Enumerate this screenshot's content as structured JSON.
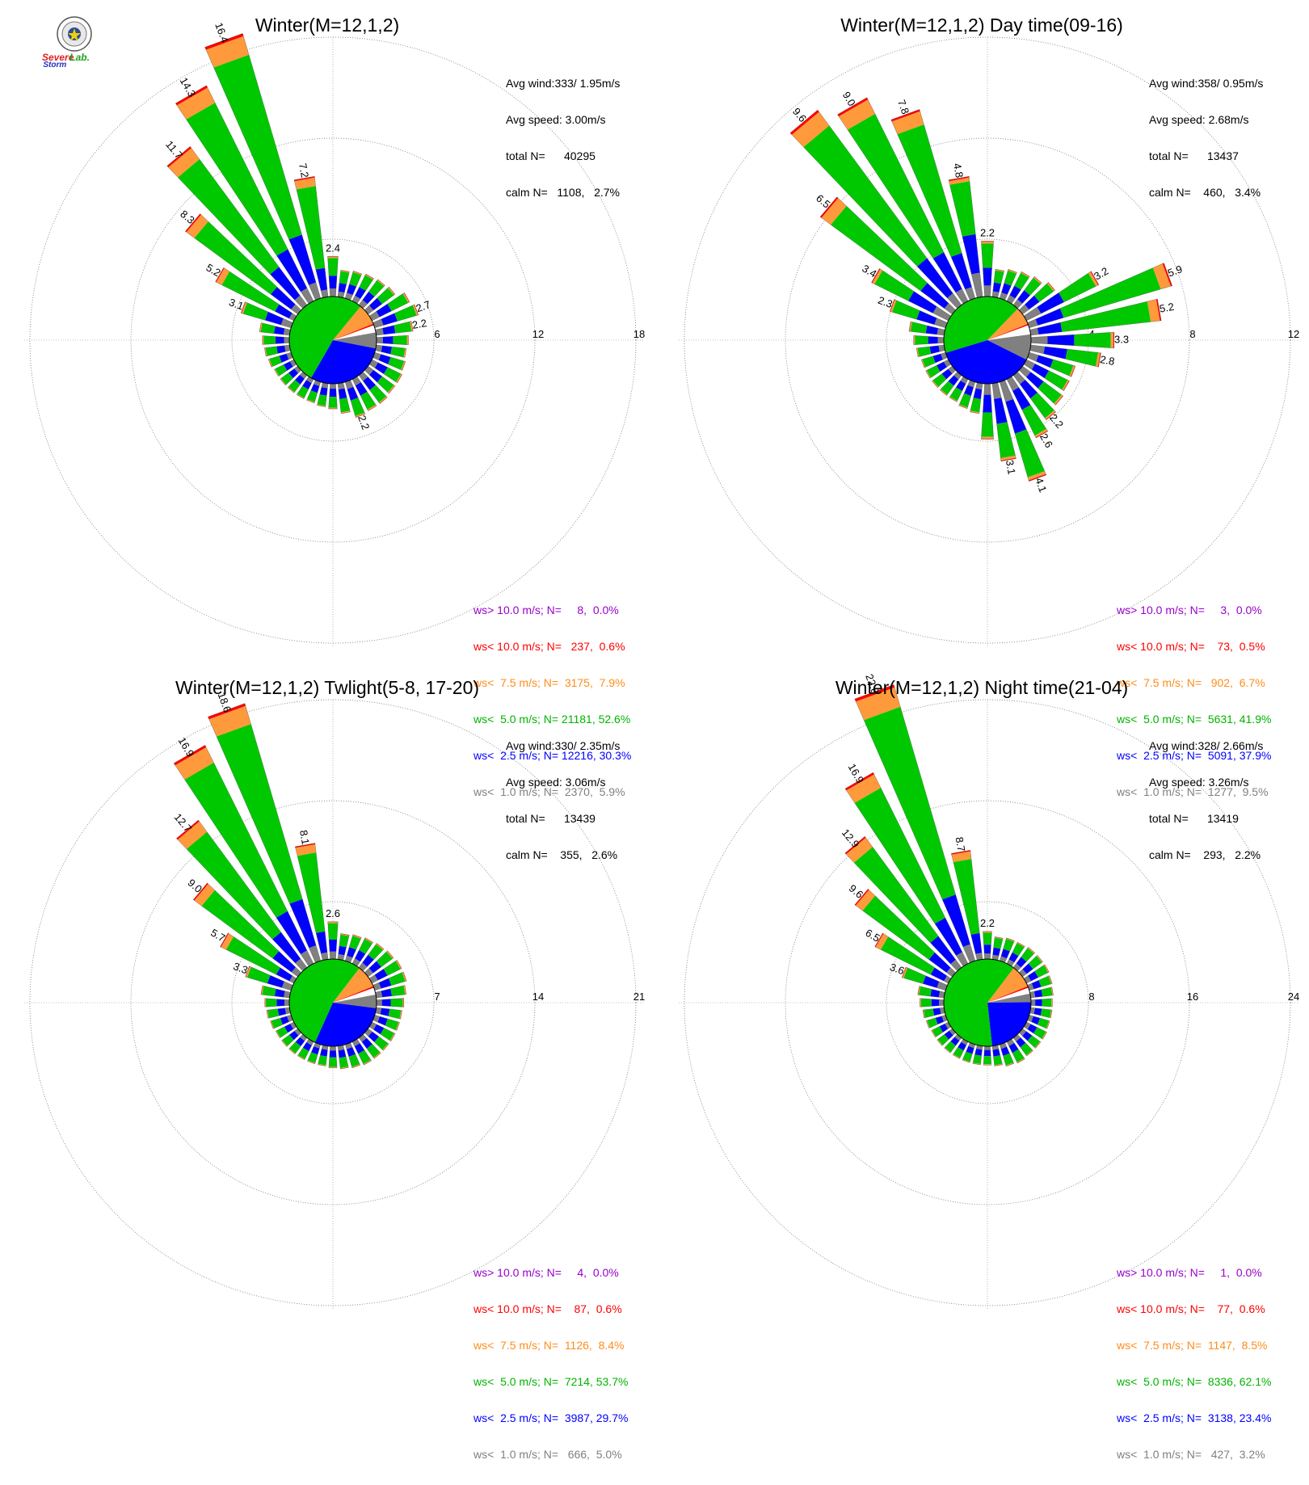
{
  "logo": {
    "text_severe": "Severe",
    "text_storm": "Storm",
    "text_lab": "Lab."
  },
  "colors": {
    "calm": "#808080",
    "b1": "#808080",
    "b2": "#0000ff",
    "b3": "#00c800",
    "b4": "#ff9a3c",
    "b5": "#ff0000",
    "b6": "#9900cc"
  },
  "chart_data": [
    {
      "type": "wind-rose",
      "title": "Winter(M=12,1,2)",
      "stats": [
        "Avg wind:333/ 1.95m/s",
        "Avg speed: 3.00m/s",
        "total N=      40295",
        "calm N=   1108,   2.7%"
      ],
      "rings": [
        6,
        12,
        18
      ],
      "ring_labels": [
        "6",
        "12",
        "18"
      ],
      "bars": [
        {
          "dir": 10,
          "value": 1.6
        },
        {
          "dir": 20,
          "value": 1.7
        },
        {
          "dir": 30,
          "value": 1.8
        },
        {
          "dir": 40,
          "value": 1.9
        },
        {
          "dir": 50,
          "value": 2.0
        },
        {
          "dir": 60,
          "value": 2.5
        },
        {
          "dir": 70,
          "value": 2.7,
          "label": "2.7"
        },
        {
          "dir": 80,
          "value": 2.2,
          "label": "2.2"
        },
        {
          "dir": 90,
          "value": 1.9
        },
        {
          "dir": 100,
          "value": 1.8
        },
        {
          "dir": 110,
          "value": 1.9
        },
        {
          "dir": 120,
          "value": 2.0
        },
        {
          "dir": 130,
          "value": 2.0
        },
        {
          "dir": 140,
          "value": 2.1
        },
        {
          "dir": 150,
          "value": 2.1
        },
        {
          "dir": 160,
          "value": 2.2,
          "label": "2.2"
        },
        {
          "dir": 170,
          "value": 1.8
        },
        {
          "dir": 180,
          "value": 1.5
        },
        {
          "dir": 190,
          "value": 1.4
        },
        {
          "dir": 200,
          "value": 1.3
        },
        {
          "dir": 210,
          "value": 1.3
        },
        {
          "dir": 220,
          "value": 1.3
        },
        {
          "dir": 230,
          "value": 1.3
        },
        {
          "dir": 240,
          "value": 1.3
        },
        {
          "dir": 250,
          "value": 1.4
        },
        {
          "dir": 260,
          "value": 1.5
        },
        {
          "dir": 270,
          "value": 1.6
        },
        {
          "dir": 280,
          "value": 1.8
        },
        {
          "dir": 290,
          "value": 3.1,
          "label": "3.1"
        },
        {
          "dir": 300,
          "value": 5.2,
          "label": "5.2"
        },
        {
          "dir": 310,
          "value": 8.3,
          "label": "8.3"
        },
        {
          "dir": 320,
          "value": 11.7,
          "label": "11.7"
        },
        {
          "dir": 330,
          "value": 14.3,
          "label": "14.3"
        },
        {
          "dir": 340,
          "value": 16.4,
          "label": "16.4"
        },
        {
          "dir": 350,
          "value": 7.2,
          "label": "7.2"
        },
        {
          "dir": 360,
          "value": 2.4,
          "label": "2.4"
        }
      ],
      "speed_pie": [
        2.7,
        5.9,
        30.3,
        52.6,
        7.9,
        0.6,
        0.0
      ],
      "legend": [
        {
          "text": "ws> 10.0 m/s; N=     8,  0.0%",
          "color": "#9900cc"
        },
        {
          "text": "ws< 10.0 m/s; N=   237,  0.6%",
          "color": "#ff0000"
        },
        {
          "text": "ws<  7.5 m/s; N=  3175,  7.9%",
          "color": "#ff8c1a"
        },
        {
          "text": "ws<  5.0 m/s; N= 21181, 52.6%",
          "color": "#00b400"
        },
        {
          "text": "ws<  2.5 m/s; N= 12216, 30.3%",
          "color": "#0000ff"
        },
        {
          "text": "ws<  1.0 m/s; N=  2370,  5.9%",
          "color": "#808080"
        }
      ]
    },
    {
      "type": "wind-rose",
      "title": "Winter(M=12,1,2) Day time(09-16)",
      "stats": [
        "Avg wind:358/ 0.95m/s",
        "Avg speed: 2.68m/s",
        "total N=      13437",
        "calm N=    460,   3.4%"
      ],
      "rings": [
        4,
        8,
        12
      ],
      "ring_labels": [
        "4",
        "8",
        "12"
      ],
      "bars": [
        {
          "dir": 10,
          "value": 1.1
        },
        {
          "dir": 20,
          "value": 1.2
        },
        {
          "dir": 30,
          "value": 1.3
        },
        {
          "dir": 40,
          "value": 1.4
        },
        {
          "dir": 50,
          "value": 1.6
        },
        {
          "dir": 60,
          "value": 3.2,
          "label": "3.2"
        },
        {
          "dir": 70,
          "value": 5.9,
          "label": "5.9"
        },
        {
          "dir": 80,
          "value": 5.2,
          "label": "5.2"
        },
        {
          "dir": 90,
          "value": 3.3,
          "label": "3.3"
        },
        {
          "dir": 100,
          "value": 2.8,
          "label": "2.8"
        },
        {
          "dir": 110,
          "value": 1.9
        },
        {
          "dir": 120,
          "value": 1.9
        },
        {
          "dir": 130,
          "value": 2.0
        },
        {
          "dir": 140,
          "value": 2.2,
          "label": "2.2"
        },
        {
          "dir": 150,
          "value": 2.6,
          "label": "2.6"
        },
        {
          "dir": 160,
          "value": 4.1,
          "label": "4.1"
        },
        {
          "dir": 170,
          "value": 3.1,
          "label": "3.1"
        },
        {
          "dir": 180,
          "value": 2.2
        },
        {
          "dir": 190,
          "value": 1.2
        },
        {
          "dir": 200,
          "value": 1.1
        },
        {
          "dir": 210,
          "value": 1.0
        },
        {
          "dir": 220,
          "value": 1.0
        },
        {
          "dir": 230,
          "value": 1.0
        },
        {
          "dir": 240,
          "value": 1.0
        },
        {
          "dir": 250,
          "value": 1.0
        },
        {
          "dir": 260,
          "value": 1.1
        },
        {
          "dir": 270,
          "value": 1.2
        },
        {
          "dir": 280,
          "value": 1.4
        },
        {
          "dir": 290,
          "value": 2.3,
          "label": "2.3"
        },
        {
          "dir": 300,
          "value": 3.4,
          "label": "3.4"
        },
        {
          "dir": 310,
          "value": 6.5,
          "label": "6.5"
        },
        {
          "dir": 320,
          "value": 9.6,
          "label": "9.6"
        },
        {
          "dir": 330,
          "value": 9.0,
          "label": "9.0"
        },
        {
          "dir": 340,
          "value": 7.8,
          "label": "7.8"
        },
        {
          "dir": 350,
          "value": 4.8,
          "label": "4.8"
        },
        {
          "dir": 360,
          "value": 2.2,
          "label": "2.2"
        }
      ],
      "speed_pie": [
        3.4,
        9.5,
        37.9,
        41.9,
        6.7,
        0.5,
        0.0
      ],
      "legend": [
        {
          "text": "ws> 10.0 m/s; N=     3,  0.0%",
          "color": "#9900cc"
        },
        {
          "text": "ws< 10.0 m/s; N=    73,  0.5%",
          "color": "#ff0000"
        },
        {
          "text": "ws<  7.5 m/s; N=   902,  6.7%",
          "color": "#ff8c1a"
        },
        {
          "text": "ws<  5.0 m/s; N=  5631, 41.9%",
          "color": "#00b400"
        },
        {
          "text": "ws<  2.5 m/s; N=  5091, 37.9%",
          "color": "#0000ff"
        },
        {
          "text": "ws<  1.0 m/s; N=  1277,  9.5%",
          "color": "#808080"
        }
      ]
    },
    {
      "type": "wind-rose",
      "title": "Winter(M=12,1,2) Twlight(5-8, 17-20)",
      "stats": [
        "Avg wind:330/ 2.35m/s",
        "Avg speed: 3.06m/s",
        "total N=      13439",
        "calm N=    355,   2.6%"
      ],
      "rings": [
        7,
        14,
        21
      ],
      "ring_labels": [
        "7",
        "14",
        "21"
      ],
      "bars": [
        {
          "dir": 10,
          "value": 1.8
        },
        {
          "dir": 20,
          "value": 1.9
        },
        {
          "dir": 30,
          "value": 2.0
        },
        {
          "dir": 40,
          "value": 2.1
        },
        {
          "dir": 50,
          "value": 2.2
        },
        {
          "dir": 60,
          "value": 2.3
        },
        {
          "dir": 70,
          "value": 2.3
        },
        {
          "dir": 80,
          "value": 2.1
        },
        {
          "dir": 90,
          "value": 1.9
        },
        {
          "dir": 100,
          "value": 1.8
        },
        {
          "dir": 110,
          "value": 1.8
        },
        {
          "dir": 120,
          "value": 1.8
        },
        {
          "dir": 130,
          "value": 1.8
        },
        {
          "dir": 140,
          "value": 1.8
        },
        {
          "dir": 150,
          "value": 1.8
        },
        {
          "dir": 160,
          "value": 1.7
        },
        {
          "dir": 170,
          "value": 1.6
        },
        {
          "dir": 180,
          "value": 1.5
        },
        {
          "dir": 190,
          "value": 1.4
        },
        {
          "dir": 200,
          "value": 1.4
        },
        {
          "dir": 210,
          "value": 1.4
        },
        {
          "dir": 220,
          "value": 1.4
        },
        {
          "dir": 230,
          "value": 1.4
        },
        {
          "dir": 240,
          "value": 1.4
        },
        {
          "dir": 250,
          "value": 1.5
        },
        {
          "dir": 260,
          "value": 1.6
        },
        {
          "dir": 270,
          "value": 1.7
        },
        {
          "dir": 280,
          "value": 2.0
        },
        {
          "dir": 290,
          "value": 3.3,
          "label": "3.3"
        },
        {
          "dir": 300,
          "value": 5.7,
          "label": "5.7"
        },
        {
          "dir": 310,
          "value": 9.0,
          "label": "9.0"
        },
        {
          "dir": 320,
          "value": 12.7,
          "label": "12.7"
        },
        {
          "dir": 330,
          "value": 16.9,
          "label": "16.9"
        },
        {
          "dir": 340,
          "value": 18.6,
          "label": "18.6"
        },
        {
          "dir": 350,
          "value": 8.1,
          "label": "8.1"
        },
        {
          "dir": 360,
          "value": 2.6,
          "label": "2.6"
        }
      ],
      "speed_pie": [
        2.6,
        5.0,
        29.7,
        53.7,
        8.4,
        0.6,
        0.0
      ],
      "legend": [
        {
          "text": "ws> 10.0 m/s; N=     4,  0.0%",
          "color": "#9900cc"
        },
        {
          "text": "ws< 10.0 m/s; N=    87,  0.6%",
          "color": "#ff0000"
        },
        {
          "text": "ws<  7.5 m/s; N=  1126,  8.4%",
          "color": "#ff8c1a"
        },
        {
          "text": "ws<  5.0 m/s; N=  7214, 53.7%",
          "color": "#00b400"
        },
        {
          "text": "ws<  2.5 m/s; N=  3987, 29.7%",
          "color": "#0000ff"
        },
        {
          "text": "ws<  1.0 m/s; N=   666,  5.0%",
          "color": "#808080"
        }
      ]
    },
    {
      "type": "wind-rose",
      "title": "Winter(M=12,1,2) Night time(21-04)",
      "stats": [
        "Avg wind:328/ 2.66m/s",
        "Avg speed: 3.26m/s",
        "total N=      13419",
        "calm N=    293,   2.2%"
      ],
      "rings": [
        8,
        16,
        24
      ],
      "ring_labels": [
        "8",
        "16",
        "24"
      ],
      "bars": [
        {
          "dir": 10,
          "value": 1.8
        },
        {
          "dir": 20,
          "value": 1.9
        },
        {
          "dir": 30,
          "value": 1.9
        },
        {
          "dir": 40,
          "value": 2.0
        },
        {
          "dir": 50,
          "value": 2.0
        },
        {
          "dir": 60,
          "value": 2.0
        },
        {
          "dir": 70,
          "value": 1.9
        },
        {
          "dir": 80,
          "value": 1.8
        },
        {
          "dir": 90,
          "value": 1.7
        },
        {
          "dir": 100,
          "value": 1.7
        },
        {
          "dir": 110,
          "value": 1.7
        },
        {
          "dir": 120,
          "value": 1.8
        },
        {
          "dir": 130,
          "value": 1.8
        },
        {
          "dir": 140,
          "value": 1.8
        },
        {
          "dir": 150,
          "value": 1.9
        },
        {
          "dir": 160,
          "value": 1.8
        },
        {
          "dir": 170,
          "value": 1.6
        },
        {
          "dir": 180,
          "value": 1.5
        },
        {
          "dir": 190,
          "value": 1.5
        },
        {
          "dir": 200,
          "value": 1.5
        },
        {
          "dir": 210,
          "value": 1.5
        },
        {
          "dir": 220,
          "value": 1.5
        },
        {
          "dir": 230,
          "value": 1.5
        },
        {
          "dir": 240,
          "value": 1.5
        },
        {
          "dir": 250,
          "value": 1.6
        },
        {
          "dir": 260,
          "value": 1.7
        },
        {
          "dir": 270,
          "value": 1.9
        },
        {
          "dir": 280,
          "value": 2.1
        },
        {
          "dir": 290,
          "value": 3.6,
          "label": "3.6"
        },
        {
          "dir": 300,
          "value": 6.5,
          "label": "6.5"
        },
        {
          "dir": 310,
          "value": 9.6,
          "label": "9.6"
        },
        {
          "dir": 320,
          "value": 12.9,
          "label": "12.9"
        },
        {
          "dir": 330,
          "value": 16.9,
          "label": "16.9"
        },
        {
          "dir": 340,
          "value": 22.8,
          "label": "22.8"
        },
        {
          "dir": 350,
          "value": 8.7,
          "label": "8.7"
        },
        {
          "dir": 360,
          "value": 2.2,
          "label": "2.2"
        }
      ],
      "speed_pie": [
        2.2,
        3.2,
        23.4,
        62.1,
        8.5,
        0.6,
        0.0
      ],
      "legend": [
        {
          "text": "ws> 10.0 m/s; N=     1,  0.0%",
          "color": "#9900cc"
        },
        {
          "text": "ws< 10.0 m/s; N=    77,  0.6%",
          "color": "#ff0000"
        },
        {
          "text": "ws<  7.5 m/s; N=  1147,  8.5%",
          "color": "#ff8c1a"
        },
        {
          "text": "ws<  5.0 m/s; N=  8336, 62.1%",
          "color": "#00b400"
        },
        {
          "text": "ws<  2.5 m/s; N=  3138, 23.4%",
          "color": "#0000ff"
        },
        {
          "text": "ws<  1.0 m/s; N=   427,  3.2%",
          "color": "#808080"
        }
      ]
    }
  ]
}
